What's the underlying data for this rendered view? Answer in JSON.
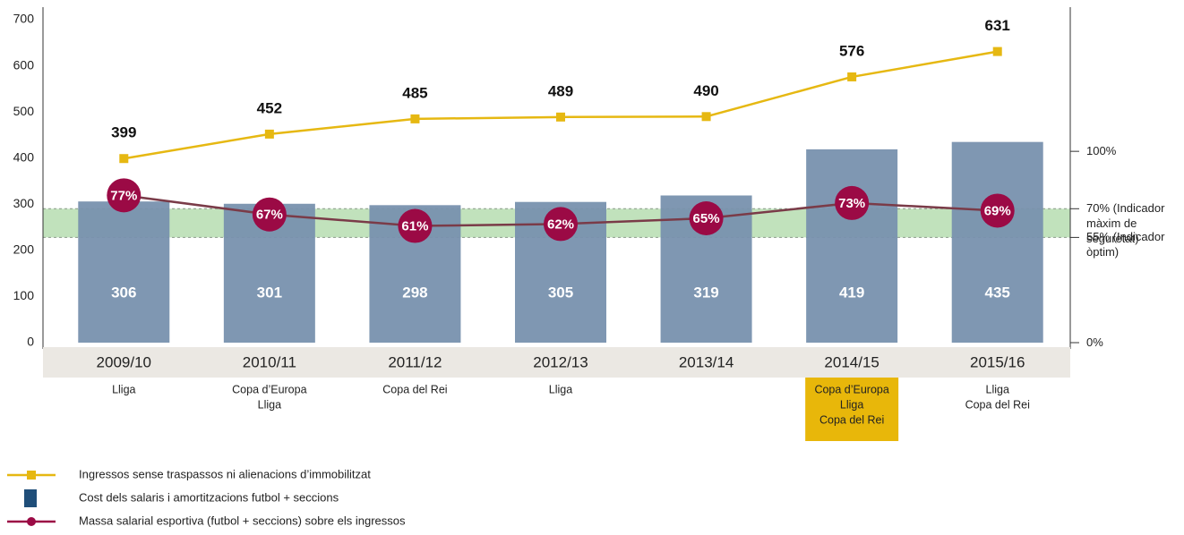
{
  "chart_data": {
    "type": "bar-line",
    "categories": [
      "2009/10",
      "2010/11",
      "2011/12",
      "2012/13",
      "2013/14",
      "2014/15",
      "2015/16"
    ],
    "titles": [
      [
        "Lliga"
      ],
      [
        "Copa d’Europa",
        "Lliga"
      ],
      [
        "Copa del Rei"
      ],
      [
        "Lliga"
      ],
      [],
      [
        "Copa d’Europa",
        "Lliga",
        "Copa del Rei"
      ],
      [
        "Lliga",
        "Copa del Rei"
      ]
    ],
    "highlighted": [
      false,
      false,
      false,
      false,
      false,
      true,
      false
    ],
    "highlight_color": "#e8b70a",
    "series": [
      {
        "name": "Ingressos sense traspassos ni alienacions d’immobilitzat",
        "type": "line",
        "color": "#e6b812",
        "values": [
          399,
          452,
          485,
          489,
          490,
          576,
          631
        ]
      },
      {
        "name": "Cost dels salaris i amortitzacions futbol + seccions",
        "type": "bar",
        "color": "#7891ae",
        "legend_color": "#1f4e79",
        "values": [
          306,
          301,
          298,
          305,
          319,
          419,
          435
        ]
      },
      {
        "name": "Massa salarial esportiva (futbol + seccions) sobre els ingressos",
        "type": "line",
        "axis": "y2",
        "color": "#9b0a45",
        "line_color": "#7a3b48",
        "values": [
          77,
          67,
          61,
          62,
          65,
          73,
          69
        ],
        "value_labels": [
          "77%",
          "67%",
          "61%",
          "62%",
          "65%",
          "73%",
          "69%"
        ]
      }
    ],
    "ylim": [
      0,
      700
    ],
    "yticks": [
      0,
      100,
      200,
      300,
      400,
      500,
      600,
      700
    ],
    "y2lim": [
      0,
      130
    ],
    "y2ticks": [
      {
        "value": 0,
        "label": "0%"
      },
      {
        "value": 55,
        "label": "55% (Indicador òptim)"
      },
      {
        "value": 70,
        "label": "70% (Indicador màxim de seguretat)"
      },
      {
        "value": 100,
        "label": "100%"
      }
    ],
    "band_color": "#b6ddb0"
  }
}
